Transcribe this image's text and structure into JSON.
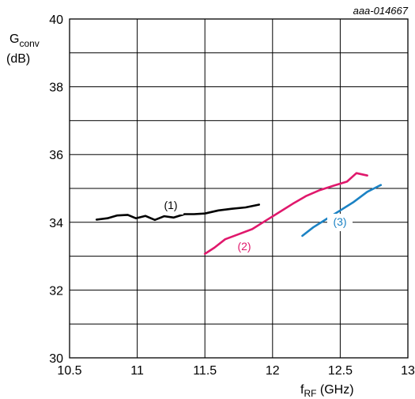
{
  "figure_id": "aaa-014667",
  "chart_data": {
    "type": "line",
    "x": {
      "ticks": [
        10.5,
        11,
        11.5,
        12,
        12.5,
        13
      ],
      "tick_labels": [
        "10.5",
        "11",
        "11.5",
        "12",
        "12.5",
        "13"
      ],
      "range": [
        10.5,
        13
      ],
      "label_main": "f",
      "label_sub": "RF",
      "label_unit": " (GHz)"
    },
    "y": {
      "ticks": [
        30,
        32,
        34,
        36,
        38,
        40
      ],
      "tick_labels": [
        "30",
        "32",
        "34",
        "36",
        "38",
        "40"
      ],
      "range": [
        30,
        40
      ],
      "label_main": "G",
      "label_sub": "conv",
      "label_unit": "(dB)"
    },
    "grid": true,
    "series": [
      {
        "name": "(1)",
        "color": "#000000",
        "points": [
          [
            10.7,
            34.08
          ],
          [
            10.78,
            34.12
          ],
          [
            10.85,
            34.2
          ],
          [
            10.93,
            34.22
          ],
          [
            10.99,
            34.12
          ],
          [
            11.06,
            34.19
          ],
          [
            11.13,
            34.07
          ],
          [
            11.2,
            34.18
          ],
          [
            11.27,
            34.14
          ],
          [
            11.35,
            34.24
          ],
          [
            11.42,
            34.24
          ],
          [
            11.5,
            34.26
          ],
          [
            11.6,
            34.35
          ],
          [
            11.7,
            34.4
          ],
          [
            11.8,
            34.44
          ],
          [
            11.9,
            34.52
          ]
        ]
      },
      {
        "name": "(2)",
        "color": "#e0186c",
        "points": [
          [
            11.5,
            33.07
          ],
          [
            11.57,
            33.25
          ],
          [
            11.65,
            33.5
          ],
          [
            11.75,
            33.65
          ],
          [
            11.85,
            33.8
          ],
          [
            11.95,
            34.05
          ],
          [
            12.05,
            34.3
          ],
          [
            12.15,
            34.55
          ],
          [
            12.25,
            34.78
          ],
          [
            12.35,
            34.95
          ],
          [
            12.45,
            35.08
          ],
          [
            12.55,
            35.2
          ],
          [
            12.62,
            35.45
          ],
          [
            12.7,
            35.38
          ]
        ]
      },
      {
        "name": "(3)",
        "color": "#1b82c4",
        "points": [
          [
            12.22,
            33.6
          ],
          [
            12.3,
            33.85
          ],
          [
            12.4,
            34.1
          ],
          [
            12.5,
            34.35
          ],
          [
            12.6,
            34.6
          ],
          [
            12.7,
            34.9
          ],
          [
            12.75,
            35.0
          ],
          [
            12.8,
            35.1
          ]
        ]
      }
    ]
  }
}
